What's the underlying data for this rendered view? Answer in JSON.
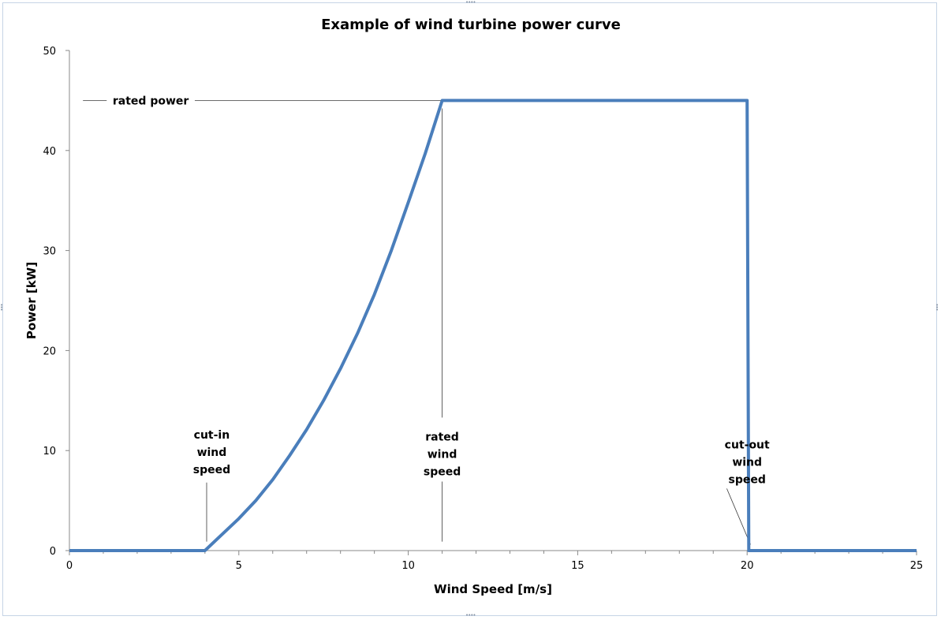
{
  "chart_data": {
    "type": "line",
    "title": "Example of wind turbine power curve",
    "xlabel": "Wind Speed [m/s]",
    "ylabel": "Power [kW]",
    "xlim": [
      0,
      25
    ],
    "ylim": [
      0,
      50
    ],
    "x_major_ticks": [
      0,
      5,
      10,
      15,
      20,
      25
    ],
    "y_major_ticks": [
      0,
      10,
      20,
      30,
      40,
      50
    ],
    "grid": false,
    "legend": "none",
    "series_color": "#4a7ebb",
    "series": [
      {
        "x": [
          0,
          4,
          4.5,
          5,
          5.5,
          6,
          6.5,
          7,
          7.5,
          8,
          8.5,
          9,
          9.5,
          10,
          10.5,
          11,
          20,
          20.05,
          25
        ],
        "y": [
          0,
          0,
          1.6,
          3.2,
          5.0,
          7.1,
          9.5,
          12.1,
          15.0,
          18.2,
          21.7,
          25.6,
          30.0,
          34.8,
          39.7,
          45,
          45,
          0,
          0
        ]
      }
    ],
    "annotations": [
      {
        "lines": [
          "rated power"
        ],
        "x": 2.4,
        "y": 45
      },
      {
        "lines": [
          "cut-in",
          "wind",
          "speed"
        ],
        "x": 4.2,
        "y": 11.6
      },
      {
        "lines": [
          "rated",
          "wind",
          "speed"
        ],
        "x": 11.0,
        "y": 11.4
      },
      {
        "lines": [
          "cut-out",
          "wind",
          "speed"
        ],
        "x": 20.0,
        "y": 10.6
      }
    ]
  }
}
